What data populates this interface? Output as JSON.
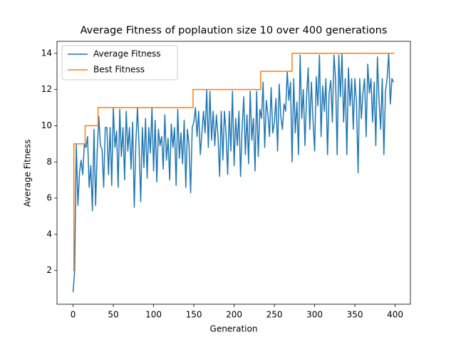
{
  "chart_data": {
    "type": "line",
    "title": "Average Fitness of poplaution size 10 over 400 generations",
    "x_label": "Generation",
    "y_label": "Average Fitness",
    "xlim": [
      -19.95,
      418.95
    ],
    "ylim": [
      0.14,
      14.66
    ],
    "xticks": [
      0,
      50,
      100,
      150,
      200,
      250,
      300,
      350,
      400
    ],
    "yticks": [
      2,
      4,
      6,
      8,
      10,
      12,
      14
    ],
    "legend": "upper left",
    "series": [
      {
        "name": "Average Fitness",
        "color": "#1f77b4",
        "x": [
          0,
          2,
          4,
          6,
          8,
          10,
          12,
          14,
          16,
          18,
          20,
          22,
          24,
          26,
          28,
          30,
          32,
          34,
          36,
          38,
          40,
          42,
          44,
          46,
          48,
          50,
          52,
          54,
          56,
          58,
          60,
          62,
          64,
          66,
          68,
          70,
          72,
          74,
          76,
          78,
          80,
          82,
          84,
          86,
          88,
          90,
          92,
          94,
          96,
          98,
          100,
          102,
          104,
          106,
          108,
          110,
          112,
          114,
          116,
          118,
          120,
          122,
          124,
          126,
          128,
          130,
          132,
          134,
          136,
          138,
          140,
          142,
          144,
          146,
          148,
          150,
          152,
          154,
          156,
          158,
          160,
          162,
          164,
          166,
          168,
          170,
          172,
          174,
          176,
          178,
          180,
          182,
          184,
          186,
          188,
          190,
          192,
          194,
          196,
          198,
          200,
          202,
          204,
          206,
          208,
          210,
          212,
          214,
          216,
          218,
          220,
          222,
          224,
          226,
          228,
          230,
          232,
          234,
          236,
          238,
          240,
          242,
          244,
          246,
          248,
          250,
          252,
          254,
          256,
          258,
          260,
          262,
          264,
          266,
          268,
          270,
          272,
          274,
          276,
          278,
          280,
          282,
          284,
          286,
          288,
          290,
          292,
          294,
          296,
          298,
          300,
          302,
          304,
          306,
          308,
          310,
          312,
          314,
          316,
          318,
          320,
          322,
          324,
          326,
          328,
          330,
          332,
          334,
          336,
          338,
          340,
          342,
          344,
          346,
          348,
          350,
          352,
          354,
          356,
          358,
          360,
          362,
          364,
          366,
          368,
          370,
          372,
          374,
          376,
          378,
          380,
          382,
          384,
          386,
          388,
          390,
          392,
          394,
          396,
          398
        ],
        "values": [
          0.8,
          2,
          9,
          5.6,
          7.4,
          8.1,
          7.3,
          9,
          8.8,
          9.4,
          6.6,
          7.8,
          5.3,
          9.8,
          5.6,
          8.6,
          10.5,
          8.9,
          8.7,
          6.6,
          9.9,
          9.9,
          7.3,
          9.9,
          6.7,
          11,
          8.8,
          9.7,
          6.6,
          10.9,
          8.3,
          9.9,
          7,
          10.8,
          8.6,
          9.9,
          7.6,
          10.2,
          5.5,
          9.1,
          11,
          8.9,
          5.8,
          9.9,
          7.7,
          10.4,
          7.1,
          9.9,
          8.5,
          11,
          7.5,
          10.3,
          6.9,
          9.8,
          8.9,
          9.4,
          7.6,
          10.6,
          8.1,
          9.3,
          7,
          10.1,
          8.8,
          9.9,
          6.7,
          10.9,
          8.2,
          9.6,
          7.9,
          10.3,
          6.6,
          9.8,
          8.9,
          6.3,
          9.9,
          10.2,
          11,
          9.4,
          10.8,
          8.4,
          9.6,
          10.8,
          9.6,
          12,
          8.8,
          11.9,
          9.2,
          10.8,
          8.9,
          10.6,
          9.4,
          7.2,
          10.8,
          8.1,
          10.8,
          9.6,
          7.3,
          10.8,
          8.6,
          11.9,
          7.8,
          10.4,
          8.9,
          10.8,
          7.2,
          9.9,
          11.6,
          8.4,
          10.6,
          7.9,
          11.9,
          9.2,
          10.4,
          7.5,
          11.9,
          8.3,
          10.9,
          10.4,
          12.4,
          8.8,
          11.4,
          10.6,
          9.4,
          12.1,
          9.6,
          10.2,
          11.5,
          8.6,
          12.3,
          10.5,
          9.8,
          11.2,
          10.8,
          13,
          11.4,
          12.4,
          8,
          12.6,
          9.6,
          11.3,
          8.4,
          13.9,
          10.4,
          12,
          8.9,
          11.6,
          13.2,
          9.8,
          12.4,
          10.3,
          8.6,
          12.7,
          11.1,
          13.9,
          9.4,
          12.2,
          10.8,
          12.6,
          8.4,
          11.8,
          12.5,
          10.2,
          13.9,
          12.6,
          8.4,
          13.9,
          11.6,
          14,
          10.2,
          12.6,
          8.4,
          13.2,
          11.1,
          12.6,
          9.8,
          12.6,
          11.2,
          7.4,
          12.6,
          10.4,
          11.8,
          12.6,
          9.4,
          13.4,
          11.8,
          12.6,
          10.2,
          12.4,
          8.9,
          13.8,
          11.4,
          9.8,
          12.6,
          8.4,
          11.9,
          12.6,
          14,
          11.2,
          12.6,
          12.4
        ]
      },
      {
        "name": "Best Fitness",
        "color": "#ff7f0e",
        "x": [
          0,
          1,
          14,
          15,
          30,
          31,
          148,
          149,
          232,
          233,
          271,
          272,
          399
        ],
        "values": [
          2,
          9,
          9,
          10,
          10,
          11,
          11,
          12,
          12,
          13,
          13,
          14,
          14
        ],
        "step": true
      }
    ]
  }
}
